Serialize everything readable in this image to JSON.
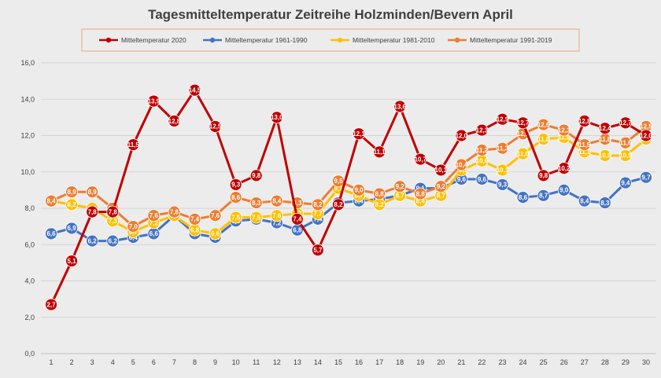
{
  "chart_data": {
    "type": "line",
    "title": "Tagesmitteltemperatur Zeitreihe Holzminden/Bevern April",
    "xlabel": "",
    "ylabel": "",
    "ylim": [
      0,
      16
    ],
    "yticks": [
      "0,0",
      "2,0",
      "4,0",
      "6,0",
      "8,0",
      "10,0",
      "12,0",
      "14,0",
      "16,0"
    ],
    "x": [
      "1",
      "2",
      "3",
      "4",
      "5",
      "6",
      "7",
      "8",
      "9",
      "10",
      "11",
      "12",
      "13",
      "14",
      "15",
      "16",
      "17",
      "18",
      "19",
      "20",
      "21",
      "22",
      "23",
      "24",
      "25",
      "26",
      "27",
      "28",
      "29",
      "30"
    ],
    "grid": true,
    "legend_position": "top",
    "series": [
      {
        "name": "Mitteltemperatur 1961-1990",
        "color": "#4472c4",
        "values": [
          6.6,
          6.9,
          6.2,
          6.2,
          6.4,
          6.6,
          7.6,
          6.6,
          6.4,
          7.3,
          7.4,
          7.2,
          6.8,
          7.4,
          8.3,
          8.4,
          8.5,
          8.7,
          9.1,
          9.1,
          9.6,
          9.6,
          9.3,
          8.6,
          8.7,
          9.0,
          8.4,
          8.3,
          9.4,
          9.7
        ],
        "labels": [
          "6,6",
          "6,9",
          "6,2",
          "6,2",
          "6,4",
          "6,6",
          "7,6",
          "6,6",
          "6,4",
          "7,3",
          "7,4",
          "7,2",
          "6,8",
          "7,4",
          "8,3",
          "8,4",
          "8,5",
          "8,7",
          "9,1",
          "9,1",
          "9,6",
          "9,6",
          "9,3",
          "8,6",
          "8,7",
          "9,0",
          "8,4",
          "8,3",
          "9,4",
          "9,7"
        ]
      },
      {
        "name": "Mitteltemperatur 1981-2010",
        "color": "#ffc000",
        "values": [
          8.4,
          8.2,
          8.0,
          7.3,
          6.7,
          7.2,
          7.6,
          6.8,
          6.6,
          7.5,
          7.5,
          7.6,
          7.7,
          7.7,
          9.1,
          8.7,
          8.2,
          8.7,
          8.4,
          8.7,
          10.1,
          10.6,
          10.1,
          11.0,
          11.8,
          11.9,
          11.1,
          10.9,
          10.9,
          11.8
        ],
        "labels": [
          "8,4",
          "8,2",
          "8,0",
          "7,3",
          "6,7",
          "7,2",
          "7,6",
          "6,8",
          "6,6",
          "7,5",
          "7,5",
          "7,6",
          "7,7",
          "7,7",
          "9,1",
          "8,7",
          "8,2",
          "8,7",
          "8,4",
          "8,7",
          "10,1",
          "10,6",
          "10,1",
          "11,0",
          "11,8",
          "11,9",
          "11,1",
          "10,9",
          "10,9",
          "11,8"
        ]
      },
      {
        "name": "Mitteltemperatur 1991-2019",
        "color": "#ed7d31",
        "values": [
          8.4,
          8.9,
          8.9,
          8.0,
          7.0,
          7.6,
          7.8,
          7.4,
          7.6,
          8.6,
          8.3,
          8.4,
          8.3,
          8.2,
          9.5,
          9.0,
          8.8,
          9.2,
          8.8,
          9.2,
          10.4,
          11.2,
          11.3,
          12.1,
          12.6,
          12.3,
          11.5,
          11.8,
          11.6,
          12.5
        ],
        "labels": [
          "8,4",
          "8,9",
          "8,9",
          "8,0",
          "7,0",
          "7,6",
          "7,8",
          "7,4",
          "7,6",
          "8,6",
          "8,3",
          "8,4",
          "8,3",
          "8,2",
          "9,5",
          "9,0",
          "8,8",
          "9,2",
          "8,8",
          "9,2",
          "10,4",
          "11,2",
          "11,3",
          "12,1",
          "12,6",
          "12,3",
          "11,5",
          "11,8",
          "11,6",
          "12,5"
        ]
      },
      {
        "name": "Mitteltemperatur 2020",
        "color": "#c00000",
        "values": [
          2.7,
          5.1,
          7.8,
          7.8,
          11.5,
          13.9,
          12.8,
          14.5,
          12.5,
          9.3,
          9.8,
          13.0,
          7.4,
          5.7,
          8.2,
          12.1,
          11.1,
          13.6,
          10.7,
          10.1,
          12.0,
          12.3,
          12.9,
          12.7,
          9.8,
          10.2,
          12.8,
          12.4,
          12.7,
          12.0
        ],
        "labels": [
          "2,7",
          "5,1",
          "7,8",
          "7,8",
          "11,5",
          "13,9",
          "12,8",
          "14,5",
          "12,5",
          "9,3",
          "9,8",
          "13,0",
          "7,4",
          "5,7",
          "8,2",
          "12,1",
          "11,1",
          "13,6",
          "10,7",
          "10,1",
          "12,0",
          "12,3",
          "12,9",
          "12,7",
          "9,8",
          "10,2",
          "12,8",
          "12,4",
          "12,7",
          "12,0"
        ]
      }
    ],
    "legend": [
      "Mitteltemperatur 2020",
      "Mitteltemperatur 1961-1990",
      "Mitteltemperatur 1981-2010",
      "Mitteltemperatur 1991-2019"
    ]
  }
}
